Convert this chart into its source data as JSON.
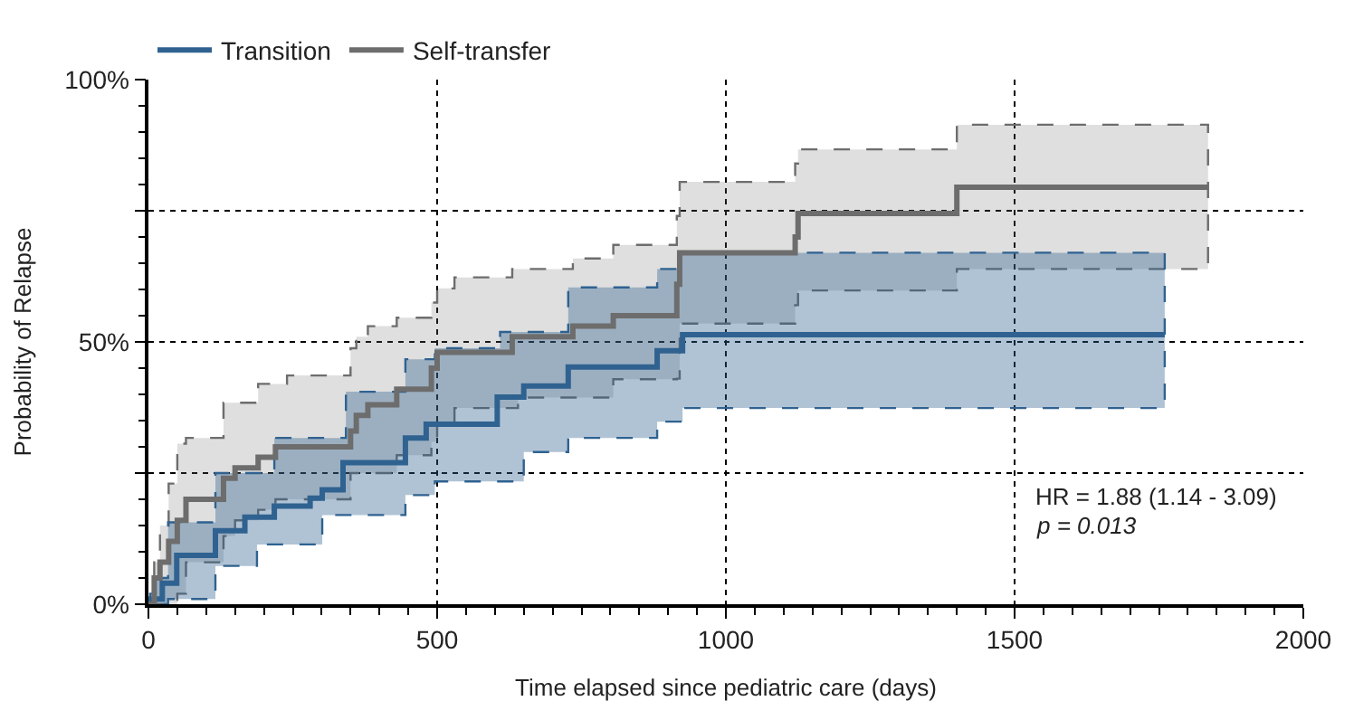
{
  "chart_data": {
    "type": "step",
    "xlabel": "Time elapsed since pediatric care (days)",
    "ylabel": "Probability of Relapse",
    "annotations": [
      "HR = 1.88 (1.14 - 3.09)",
      "p = 0.013"
    ],
    "xlim": [
      0,
      2000
    ],
    "xticks": [
      0,
      500,
      1000,
      1500,
      2000
    ],
    "ylim": [
      0,
      100
    ],
    "yticks": [
      {
        "value": 0,
        "label": "0%"
      },
      {
        "value": 25,
        "label": null
      },
      {
        "value": 50,
        "label": "50%"
      },
      {
        "value": 75,
        "label": null
      },
      {
        "value": 100,
        "label": "100%"
      }
    ],
    "grid": true,
    "legend": "top left",
    "marker": "none",
    "line_style": "solid",
    "series": [
      {
        "name": "Transition",
        "color": "#2f6290",
        "x": [
          0,
          3,
          10,
          24,
          34,
          49,
          116,
          167,
          188,
          218,
          280,
          301,
          337,
          342,
          445,
          481,
          496,
          604,
          609,
          650,
          727,
          881,
          918,
          925,
          1760
        ],
        "values": [
          0,
          1,
          1,
          4,
          4,
          9.3,
          14,
          16.6,
          16.6,
          18.7,
          20.2,
          21.8,
          27,
          27,
          31.7,
          34.3,
          34.3,
          39.5,
          39.5,
          41.6,
          45.2,
          48.3,
          48.3,
          51.4,
          51.4
        ],
        "lower": [
          0,
          0,
          0,
          0,
          1,
          1,
          7.3,
          7.3,
          11.4,
          11.4,
          11.4,
          17,
          17,
          17,
          20.8,
          20.8,
          23.4,
          23.4,
          23.4,
          29,
          31.7,
          34.8,
          34.8,
          37.4,
          37.4
        ],
        "upper": [
          0,
          2,
          5,
          5,
          15.6,
          15.6,
          25,
          25,
          25,
          31.7,
          31.7,
          31.7,
          31.7,
          40.5,
          46.7,
          46.7,
          48.8,
          48.8,
          51.9,
          51.9,
          60.4,
          63.9,
          67,
          67,
          67
        ]
      },
      {
        "name": "Self-transfer",
        "color": "#6d6d6d",
        "x": [
          0,
          10,
          20,
          35,
          50,
          65,
          130,
          150,
          190,
          220,
          240,
          350,
          360,
          380,
          430,
          490,
          500,
          530,
          630,
          640,
          735,
          805,
          915,
          920,
          1120,
          1125,
          1400,
          1835
        ],
        "values": [
          0,
          5,
          8,
          12,
          16,
          20,
          24,
          26,
          28,
          30,
          30,
          33,
          36,
          38,
          41,
          45,
          48,
          48,
          51,
          51,
          53,
          55,
          61,
          67,
          70,
          74.5,
          79.5,
          79.5
        ],
        "lower": [
          0,
          0,
          0,
          0,
          2,
          8,
          13,
          16,
          18,
          20,
          20,
          25,
          25,
          25,
          28.4,
          31,
          34,
          37.4,
          37.4,
          39.4,
          39.4,
          42.9,
          43,
          53.5,
          57,
          59.8,
          63.9,
          63.9
        ],
        "upper": [
          0,
          8,
          15,
          23,
          30.6,
          31.7,
          38.4,
          38.4,
          42,
          42,
          43.6,
          48.8,
          51,
          53,
          54.6,
          57.5,
          60.2,
          62.3,
          63.9,
          63.9,
          65.9,
          68.5,
          74,
          80.5,
          84,
          86.7,
          91.4,
          91.4
        ]
      }
    ]
  }
}
